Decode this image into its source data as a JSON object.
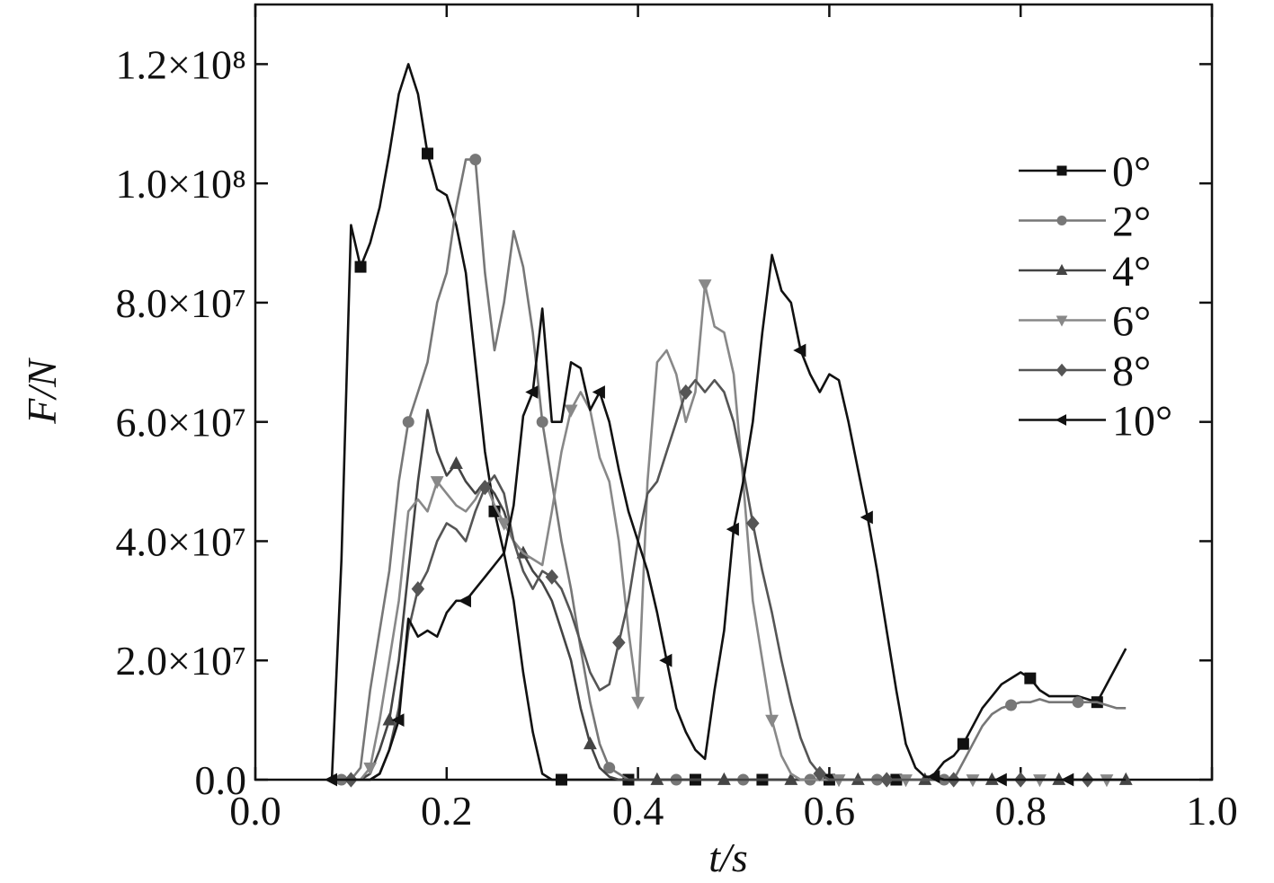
{
  "chart_data": {
    "type": "line",
    "xlabel": "t/s",
    "ylabel": "F/N",
    "x": [
      0.08,
      0.09,
      0.1,
      0.11,
      0.12,
      0.13,
      0.14,
      0.15,
      0.16,
      0.17,
      0.18,
      0.19,
      0.2,
      0.21,
      0.22,
      0.23,
      0.24,
      0.25,
      0.26,
      0.27,
      0.28,
      0.29,
      0.3,
      0.31,
      0.32,
      0.33,
      0.34,
      0.35,
      0.36,
      0.37,
      0.38,
      0.39,
      0.4,
      0.41,
      0.42,
      0.43,
      0.44,
      0.45,
      0.46,
      0.47,
      0.48,
      0.49,
      0.5,
      0.51,
      0.52,
      0.53,
      0.54,
      0.55,
      0.56,
      0.57,
      0.58,
      0.59,
      0.6,
      0.61,
      0.62,
      0.63,
      0.64,
      0.65,
      0.66,
      0.67,
      0.68,
      0.69,
      0.7,
      0.71,
      0.72,
      0.73,
      0.74,
      0.75,
      0.76,
      0.77,
      0.78,
      0.79,
      0.8,
      0.81,
      0.82,
      0.83,
      0.84,
      0.85,
      0.86,
      0.87,
      0.88,
      0.89,
      0.9,
      0.91
    ],
    "series": [
      {
        "name": "0°",
        "color": "#111111",
        "marker": "square",
        "values": [
          0,
          37000000.0,
          93000000.0,
          86000000.0,
          90000000.0,
          96000000.0,
          105000000.0,
          115000000.0,
          120000000.0,
          115000000.0,
          105000000.0,
          99000000.0,
          98000000.0,
          93000000.0,
          85000000.0,
          70000000.0,
          55000000.0,
          45000000.0,
          38000000.0,
          30000000.0,
          18000000.0,
          8000000.0,
          1000000.0,
          0,
          0,
          0,
          0,
          0,
          0,
          0,
          0,
          0,
          0,
          0,
          0,
          0,
          0,
          0,
          0,
          0,
          0,
          0,
          0,
          0,
          0,
          0,
          0,
          0,
          0,
          0,
          0,
          0,
          0,
          0,
          0,
          0,
          0,
          0,
          0,
          0,
          0,
          0,
          0,
          1000000.0,
          3000000.0,
          4000000.0,
          6000000.0,
          9000000.0,
          12000000.0,
          14000000.0,
          16000000.0,
          17000000.0,
          18000000.0,
          17000000.0,
          15000000.0,
          14000000.0,
          14000000.0,
          14000000.0,
          14000000.0,
          13500000.0,
          13000000.0,
          16000000.0,
          19000000.0,
          22000000.0
        ]
      },
      {
        "name": "2°",
        "color": "#777777",
        "marker": "circle",
        "values": [
          0,
          0,
          0,
          2000000.0,
          15000000.0,
          25000000.0,
          35000000.0,
          50000000.0,
          60000000.0,
          65000000.0,
          70000000.0,
          80000000.0,
          85000000.0,
          96000000.0,
          104000000.0,
          104000000.0,
          85000000.0,
          72000000.0,
          80000000.0,
          92000000.0,
          86000000.0,
          75000000.0,
          60000000.0,
          50000000.0,
          40000000.0,
          32000000.0,
          22000000.0,
          13000000.0,
          6000000.0,
          2000000.0,
          1000000.0,
          0,
          0,
          0,
          0,
          0,
          0,
          0,
          0,
          0,
          0,
          0,
          0,
          0,
          0,
          0,
          0,
          0,
          0,
          0,
          0,
          0,
          0,
          0,
          0,
          0,
          0,
          0,
          0,
          0,
          0,
          0,
          0,
          0,
          0,
          0,
          3000000.0,
          6000000.0,
          9000000.0,
          11000000.0,
          12000000.0,
          12500000.0,
          13000000.0,
          13000000.0,
          13500000.0,
          13000000.0,
          13000000.0,
          13000000.0,
          13000000.0,
          13000000.0,
          13000000.0,
          12500000.0,
          12000000.0,
          12000000.0
        ]
      },
      {
        "name": "4°",
        "color": "#444444",
        "marker": "triangle-up",
        "values": [
          0,
          0,
          0,
          0,
          1000000.0,
          5000000.0,
          10000000.0,
          20000000.0,
          35000000.0,
          50000000.0,
          62000000.0,
          55000000.0,
          51000000.0,
          53000000.0,
          50000000.0,
          48000000.0,
          50000000.0,
          48000000.0,
          45000000.0,
          40000000.0,
          38000000.0,
          35000000.0,
          33000000.0,
          30000000.0,
          25000000.0,
          20000000.0,
          12000000.0,
          6000000.0,
          2000000.0,
          500000.0,
          0,
          0,
          0,
          0,
          0,
          0,
          0,
          0,
          0,
          0,
          0,
          0,
          0,
          0,
          0,
          0,
          0,
          0,
          0,
          0,
          0,
          0,
          0,
          0,
          0,
          0,
          0,
          0,
          0,
          0,
          0,
          0,
          0,
          0,
          0,
          0,
          0,
          0,
          0,
          0,
          0,
          0,
          0,
          0,
          0,
          0,
          0,
          0,
          0,
          0,
          0,
          0,
          0,
          0
        ]
      },
      {
        "name": "6°",
        "color": "#888888",
        "marker": "triangle-down",
        "values": [
          0,
          0,
          0,
          0,
          2000000.0,
          10000000.0,
          20000000.0,
          30000000.0,
          45000000.0,
          47000000.0,
          45000000.0,
          50000000.0,
          48000000.0,
          46000000.0,
          45000000.0,
          47000000.0,
          50000000.0,
          46000000.0,
          43000000.0,
          40000000.0,
          38000000.0,
          37000000.0,
          36000000.0,
          45000000.0,
          55000000.0,
          62000000.0,
          65000000.0,
          62000000.0,
          54000000.0,
          50000000.0,
          40000000.0,
          25000000.0,
          13000000.0,
          50000000.0,
          70000000.0,
          72000000.0,
          68000000.0,
          60000000.0,
          65000000.0,
          83000000.0,
          76000000.0,
          75000000.0,
          68000000.0,
          50000000.0,
          30000000.0,
          20000000.0,
          10000000.0,
          4000000.0,
          1000000.0,
          0,
          0,
          0,
          0,
          0,
          0,
          0,
          0,
          0,
          0,
          0,
          0,
          0,
          0,
          0,
          0,
          0,
          0,
          0,
          0,
          0,
          0,
          0,
          0,
          0,
          0,
          0,
          0,
          0,
          0,
          0,
          0,
          0,
          0,
          0
        ]
      },
      {
        "name": "8°",
        "color": "#555555",
        "marker": "diamond",
        "values": [
          0,
          0,
          0,
          0,
          0,
          1000000.0,
          5000000.0,
          12000000.0,
          25000000.0,
          32000000.0,
          35000000.0,
          40000000.0,
          43000000.0,
          42000000.0,
          40000000.0,
          45000000.0,
          49000000.0,
          51000000.0,
          48000000.0,
          40000000.0,
          35000000.0,
          32000000.0,
          35000000.0,
          34000000.0,
          32000000.0,
          28000000.0,
          23000000.0,
          18000000.0,
          15000000.0,
          16000000.0,
          23000000.0,
          30000000.0,
          40000000.0,
          48000000.0,
          50000000.0,
          55000000.0,
          60000000.0,
          65000000.0,
          67000000.0,
          65000000.0,
          67000000.0,
          65000000.0,
          60000000.0,
          52000000.0,
          43000000.0,
          35000000.0,
          28000000.0,
          20000000.0,
          13000000.0,
          7000000.0,
          3000000.0,
          1000000.0,
          0,
          0,
          0,
          0,
          0,
          0,
          0,
          0,
          0,
          0,
          0,
          0,
          0,
          0,
          0,
          0,
          0,
          0,
          0,
          0,
          0,
          0,
          0,
          0,
          0,
          0,
          0,
          0,
          0,
          0,
          0,
          0
        ]
      },
      {
        "name": "10°",
        "color": "#111111",
        "marker": "triangle-left",
        "values": [
          0,
          0,
          0,
          0,
          0,
          1000000.0,
          5000000.0,
          10000000.0,
          27000000.0,
          24000000.0,
          25000000.0,
          24000000.0,
          28000000.0,
          30000000.0,
          30000000.0,
          32000000.0,
          34000000.0,
          36000000.0,
          38000000.0,
          46000000.0,
          61000000.0,
          65000000.0,
          79000000.0,
          60000000.0,
          60000000.0,
          70000000.0,
          69000000.0,
          62000000.0,
          65000000.0,
          60000000.0,
          52000000.0,
          45000000.0,
          40000000.0,
          35000000.0,
          28000000.0,
          20000000.0,
          12000000.0,
          8000000.0,
          5000000.0,
          3500000.0,
          15000000.0,
          25000000.0,
          42000000.0,
          50000000.0,
          60000000.0,
          75000000.0,
          88000000.0,
          82000000.0,
          80000000.0,
          72000000.0,
          68000000.0,
          65000000.0,
          68000000.0,
          67000000.0,
          60000000.0,
          52000000.0,
          44000000.0,
          35000000.0,
          25000000.0,
          15000000.0,
          6000000.0,
          2000000.0,
          500000.0,
          500000.0,
          0,
          0,
          0,
          0,
          0,
          0,
          0,
          0,
          0,
          0,
          0,
          0,
          0,
          0,
          0,
          0,
          0,
          0,
          0,
          0
        ]
      }
    ],
    "xlim": [
      0,
      1.0
    ],
    "ylim": [
      0,
      130000000.0
    ],
    "xticks": [
      {
        "value": 0,
        "label": "0.0"
      },
      0.2,
      0.4,
      0.6,
      0.8,
      {
        "value": 1,
        "label": "1.0"
      }
    ],
    "yticks": [
      {
        "value": 0,
        "label": "0.0"
      },
      {
        "value": 20000000,
        "label": "2.0×10⁷"
      },
      {
        "value": 40000000,
        "label": "4.0×10⁷"
      },
      {
        "value": 60000000,
        "label": "6.0×10⁷"
      },
      {
        "value": 80000000,
        "label": "8.0×10⁷"
      },
      {
        "value": 100000000,
        "label": "1.0×10⁸"
      },
      {
        "value": 120000000,
        "label": "1.2×10⁸"
      }
    ],
    "legend": "upper right",
    "grid": false
  }
}
